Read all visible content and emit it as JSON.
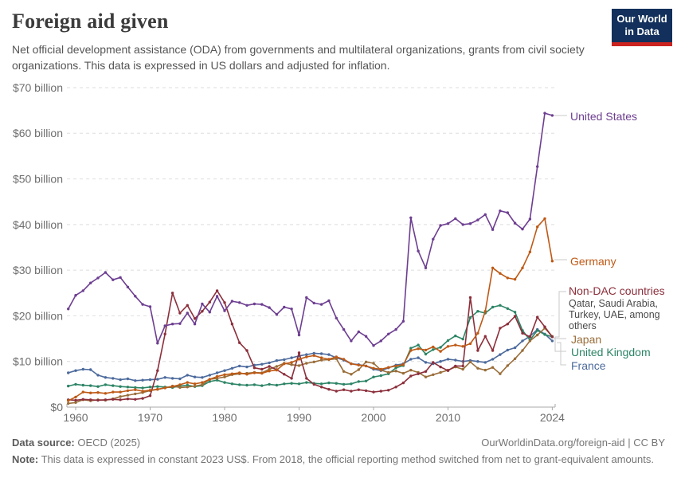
{
  "header": {
    "title": "Foreign aid given",
    "subtitle": "Net official development assistance (ODA) from governments and multilateral organizations, grants from civil society organizations. This data is expressed in US dollars and adjusted for inflation.",
    "logo_line1": "Our World",
    "logo_line2": "in Data",
    "logo_bg_color": "#12305B",
    "logo_accent_color": "#CB2420"
  },
  "chart_data": {
    "type": "line",
    "title": "Foreign aid given",
    "unit": "US$ billion (constant 2023 US$)",
    "x": [
      1959,
      1960,
      1961,
      1962,
      1963,
      1964,
      1965,
      1966,
      1967,
      1968,
      1969,
      1970,
      1971,
      1972,
      1973,
      1974,
      1975,
      1976,
      1977,
      1978,
      1979,
      1980,
      1981,
      1982,
      1983,
      1984,
      1985,
      1986,
      1987,
      1988,
      1989,
      1990,
      1991,
      1992,
      1993,
      1994,
      1995,
      1996,
      1997,
      1998,
      1999,
      2000,
      2001,
      2002,
      2003,
      2004,
      2005,
      2006,
      2007,
      2008,
      2009,
      2010,
      2011,
      2012,
      2013,
      2014,
      2015,
      2016,
      2017,
      2018,
      2019,
      2020,
      2021,
      2022,
      2023,
      2024
    ],
    "ylim": [
      0,
      70
    ],
    "grid": "horizontal-dashed",
    "legend_position": "right-direct-labels",
    "yticks": [
      {
        "value": 0,
        "label": "$0"
      },
      {
        "value": 10,
        "label": "$10 billion"
      },
      {
        "value": 20,
        "label": "$20 billion"
      },
      {
        "value": 30,
        "label": "$30 billion"
      },
      {
        "value": 40,
        "label": "$40 billion"
      },
      {
        "value": 50,
        "label": "$50 billion"
      },
      {
        "value": 60,
        "label": "$60 billion"
      },
      {
        "value": 70,
        "label": "$70 billion"
      }
    ],
    "xticks": [
      {
        "year": 1960,
        "label": "1960"
      },
      {
        "year": 1970,
        "label": "1970"
      },
      {
        "year": 1980,
        "label": "1980"
      },
      {
        "year": 1990,
        "label": "1990"
      },
      {
        "year": 2000,
        "label": "2000"
      },
      {
        "year": 2010,
        "label": "2010"
      },
      {
        "year": 2024,
        "label": "2024"
      }
    ],
    "series": [
      {
        "name": "United States",
        "color": "#6D3E91",
        "values": [
          21.5,
          24.5,
          25.5,
          27.2,
          28.3,
          29.5,
          27.9,
          28.4,
          26.3,
          24.3,
          22.5,
          22.0,
          14.0,
          17.8,
          18.2,
          18.3,
          20.6,
          18.2,
          22.6,
          20.8,
          24.3,
          21.1,
          23.2,
          22.9,
          22.3,
          22.6,
          22.5,
          21.8,
          20.3,
          21.9,
          21.5,
          15.8,
          24.0,
          22.8,
          22.5,
          23.3,
          19.5,
          17.0,
          14.5,
          16.5,
          15.5,
          13.5,
          14.5,
          16.0,
          17.0,
          18.8,
          41.5,
          34.2,
          30.5,
          36.8,
          39.8,
          40.2,
          41.3,
          40.0,
          40.2,
          41.0,
          42.2,
          38.9,
          43.0,
          42.6,
          40.3,
          39.0,
          41.2,
          52.7,
          64.4,
          63.9
        ]
      },
      {
        "name": "Germany",
        "color": "#BE5915",
        "values": [
          1.4,
          2.2,
          3.3,
          3.1,
          3.2,
          3.0,
          3.3,
          3.3,
          3.6,
          3.8,
          3.5,
          3.7,
          3.9,
          4.2,
          4.5,
          4.9,
          5.4,
          5.1,
          5.4,
          6.1,
          6.7,
          7.1,
          7.3,
          7.5,
          7.2,
          7.5,
          7.4,
          7.9,
          8.1,
          9.5,
          9.8,
          10.5,
          11.0,
          11.3,
          10.8,
          10.5,
          11.0,
          10.5,
          9.5,
          9.2,
          9.0,
          8.5,
          8.3,
          8.7,
          9.0,
          9.3,
          12.4,
          12.8,
          12.5,
          13.2,
          12.2,
          13.3,
          13.6,
          13.3,
          13.9,
          16.2,
          21.0,
          30.5,
          29.3,
          28.3,
          28.0,
          30.5,
          34.0,
          39.5,
          41.3,
          32.0
        ]
      },
      {
        "name": "Non-DAC countries",
        "color": "#8C2F3B",
        "values": [
          1.6,
          1.5,
          1.7,
          1.6,
          1.5,
          1.6,
          1.7,
          1.6,
          1.8,
          1.7,
          1.9,
          2.5,
          8.0,
          16.0,
          25.0,
          20.6,
          22.3,
          19.4,
          21.0,
          23.0,
          25.5,
          22.9,
          18.2,
          14.1,
          12.4,
          8.6,
          8.3,
          8.9,
          8.2,
          7.2,
          6.3,
          11.9,
          6.3,
          5.0,
          4.4,
          3.9,
          3.5,
          3.8,
          3.5,
          3.8,
          3.6,
          3.3,
          3.5,
          3.7,
          4.4,
          5.3,
          6.8,
          7.3,
          7.8,
          9.8,
          8.8,
          8.0,
          9.0,
          9.0,
          24.0,
          12.4,
          15.5,
          12.4,
          17.3,
          18.2,
          19.9,
          16.2,
          15.4,
          19.7,
          17.6,
          15.4
        ]
      },
      {
        "name": "Japan",
        "color": "#996D39",
        "values": [
          0.8,
          1.0,
          1.6,
          1.4,
          1.6,
          1.5,
          1.8,
          2.3,
          2.6,
          2.9,
          3.2,
          3.6,
          3.9,
          4.2,
          4.6,
          4.3,
          4.4,
          4.6,
          4.9,
          6.1,
          6.3,
          6.6,
          7.1,
          7.3,
          7.4,
          7.6,
          7.5,
          8.3,
          8.9,
          9.6,
          9.3,
          9.1,
          9.6,
          9.9,
          10.3,
          10.4,
          10.6,
          7.8,
          7.2,
          8.2,
          9.9,
          9.6,
          8.1,
          7.6,
          7.9,
          7.4,
          8.1,
          7.6,
          6.6,
          7.1,
          7.6,
          8.1,
          8.8,
          8.3,
          9.9,
          8.5,
          8.1,
          8.7,
          7.3,
          9.1,
          10.6,
          12.4,
          14.5,
          15.8,
          17.3,
          15.5
        ]
      },
      {
        "name": "United Kingdom",
        "color": "#2C8465",
        "values": [
          4.6,
          5.0,
          4.8,
          4.7,
          4.5,
          4.9,
          4.7,
          4.5,
          4.4,
          4.3,
          4.2,
          4.4,
          4.5,
          4.4,
          4.3,
          4.6,
          4.8,
          4.5,
          4.7,
          5.6,
          5.9,
          5.4,
          5.1,
          4.9,
          4.8,
          4.9,
          4.7,
          5.0,
          4.8,
          5.1,
          5.2,
          5.1,
          5.4,
          5.2,
          5.1,
          5.3,
          5.2,
          5.0,
          5.1,
          5.6,
          5.7,
          6.6,
          6.9,
          7.3,
          8.6,
          9.1,
          12.9,
          13.6,
          11.6,
          12.6,
          13.1,
          14.6,
          15.6,
          14.9,
          19.6,
          21.0,
          20.6,
          21.9,
          22.3,
          21.6,
          20.8,
          16.8,
          14.7,
          16.8,
          15.9,
          15.4
        ]
      },
      {
        "name": "France",
        "color": "#4C6A9C",
        "values": [
          7.5,
          8.0,
          8.3,
          8.2,
          7.0,
          6.5,
          6.3,
          6.0,
          6.2,
          5.8,
          5.9,
          6.0,
          6.1,
          6.5,
          6.3,
          6.2,
          7.0,
          6.6,
          6.5,
          7.0,
          7.5,
          8.0,
          8.5,
          9.0,
          8.8,
          9.2,
          9.4,
          9.7,
          10.2,
          10.4,
          10.8,
          11.2,
          11.5,
          11.8,
          11.7,
          11.5,
          10.8,
          10.3,
          9.5,
          9.3,
          9.0,
          8.3,
          8.0,
          8.6,
          9.2,
          9.5,
          10.5,
          10.8,
          9.8,
          9.5,
          10.0,
          10.5,
          10.3,
          10.0,
          10.2,
          10.0,
          9.8,
          10.5,
          11.5,
          12.5,
          13.0,
          14.5,
          15.5,
          17.0,
          16.0,
          14.5
        ]
      }
    ],
    "annotations": {
      "non_dac_sublabel": "Qatar, Saudi Arabia, Turkey, UAE, among others"
    }
  },
  "footer": {
    "datasource_label": "Data source:",
    "datasource": "OECD (2025)",
    "link": "OurWorldinData.org/foreign-aid | CC BY",
    "note_label": "Note:",
    "note": "This data is expressed in constant 2023 US$. From 2018, the official reporting method switched from net to grant-equivalent amounts."
  }
}
